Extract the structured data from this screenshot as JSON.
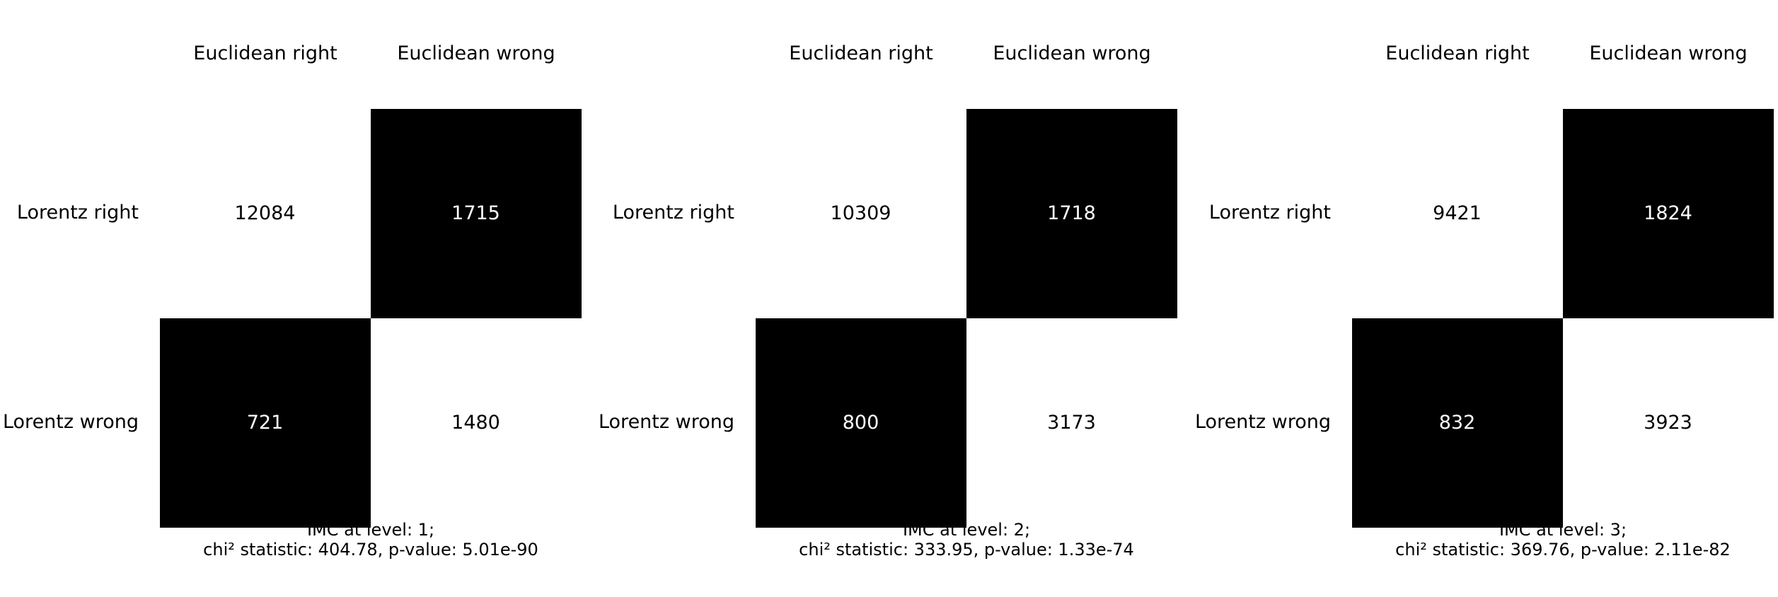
{
  "chart_data": [
    {
      "type": "heatmap",
      "columns": [
        "Euclidean right",
        "Euclidean wrong"
      ],
      "rows": [
        "Lorentz right",
        "Lorentz wrong"
      ],
      "values": [
        [
          12084,
          1715
        ],
        [
          721,
          1480
        ]
      ],
      "colormap": [
        "#ffffff",
        "#000000"
      ],
      "caption": [
        "IMC at level: 1;",
        "chi² statistic: 404.78, p-value: 5.01e-90"
      ]
    },
    {
      "type": "heatmap",
      "columns": [
        "Euclidean right",
        "Euclidean wrong"
      ],
      "rows": [
        "Lorentz right",
        "Lorentz wrong"
      ],
      "values": [
        [
          10309,
          1718
        ],
        [
          800,
          3173
        ]
      ],
      "colormap": [
        "#ffffff",
        "#000000"
      ],
      "caption": [
        "IMC at level: 2;",
        "chi² statistic: 333.95, p-value: 1.33e-74"
      ]
    },
    {
      "type": "heatmap",
      "columns": [
        "Euclidean right",
        "Euclidean wrong"
      ],
      "rows": [
        "Lorentz right",
        "Lorentz wrong"
      ],
      "values": [
        [
          9421,
          1824
        ],
        [
          832,
          3923
        ]
      ],
      "colormap": [
        "#ffffff",
        "#000000"
      ],
      "caption": [
        "IMC at level: 3;",
        "chi² statistic: 369.76, p-value: 2.11e-82"
      ]
    }
  ]
}
